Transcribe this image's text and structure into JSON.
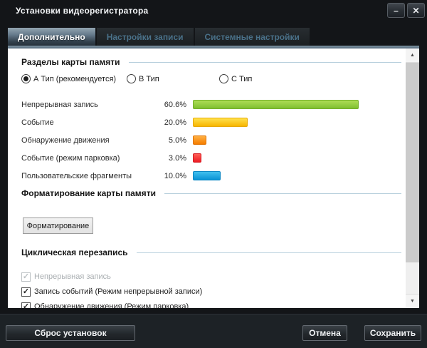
{
  "window": {
    "title": "Установки видеорегистратора"
  },
  "icons": {
    "minimize": "–",
    "close": "✕",
    "check": "✓",
    "scroll_up": "▲",
    "scroll_down": "▼"
  },
  "tabs": [
    {
      "label": "Дополнительно",
      "active": true
    },
    {
      "label": "Настройки записи",
      "active": false
    },
    {
      "label": "Системные настройки",
      "active": false
    }
  ],
  "sections": {
    "partitions": {
      "title": "Разделы карты памяти",
      "radios": [
        {
          "label": "А Тип (рекомендуется)",
          "selected": true
        },
        {
          "label": "В Тип",
          "selected": false
        },
        {
          "label": "С Тип",
          "selected": false
        }
      ],
      "bars": [
        {
          "label": "Непрерывная запись",
          "value": "60.6%",
          "percent": 60.6,
          "color_top": "#aedd55",
          "color_bottom": "#7fbf30",
          "border": "#74b02a"
        },
        {
          "label": "Событие",
          "value": "20.0%",
          "percent": 20.0,
          "color_top": "#ffe14d",
          "color_bottom": "#f7b500",
          "border": "#e8a900"
        },
        {
          "label": "Обнаружение движения",
          "value": "5.0%",
          "percent": 5.0,
          "color_top": "#ffb143",
          "color_bottom": "#f57d00",
          "border": "#e07200"
        },
        {
          "label": "Событие (режим парковка)",
          "value": "3.0%",
          "percent": 3.0,
          "color_top": "#ff5f57",
          "color_bottom": "#ed1c24",
          "border": "#d41920"
        },
        {
          "label": "Пользовательские фрагменты",
          "value": "10.0%",
          "percent": 10.0,
          "color_top": "#41bfee",
          "color_bottom": "#0a93d5",
          "border": "#0886c4"
        }
      ]
    },
    "formatting": {
      "title": "Форматирование карты памяти",
      "button_label": "Форматирование"
    },
    "overwrite": {
      "title": "Циклическая перезапись",
      "checkboxes": [
        {
          "label": "Непрерывная запись",
          "checked": true,
          "disabled": true
        },
        {
          "label": "Запись событий (Режим непрерывной записи)",
          "checked": true,
          "disabled": false
        },
        {
          "label": "Обнаружение движения (Режим парковка)",
          "checked": true,
          "disabled": false
        }
      ]
    }
  },
  "footer": {
    "reset_label": "Сброс установок",
    "cancel_label": "Отмена",
    "save_label": "Сохранить"
  }
}
